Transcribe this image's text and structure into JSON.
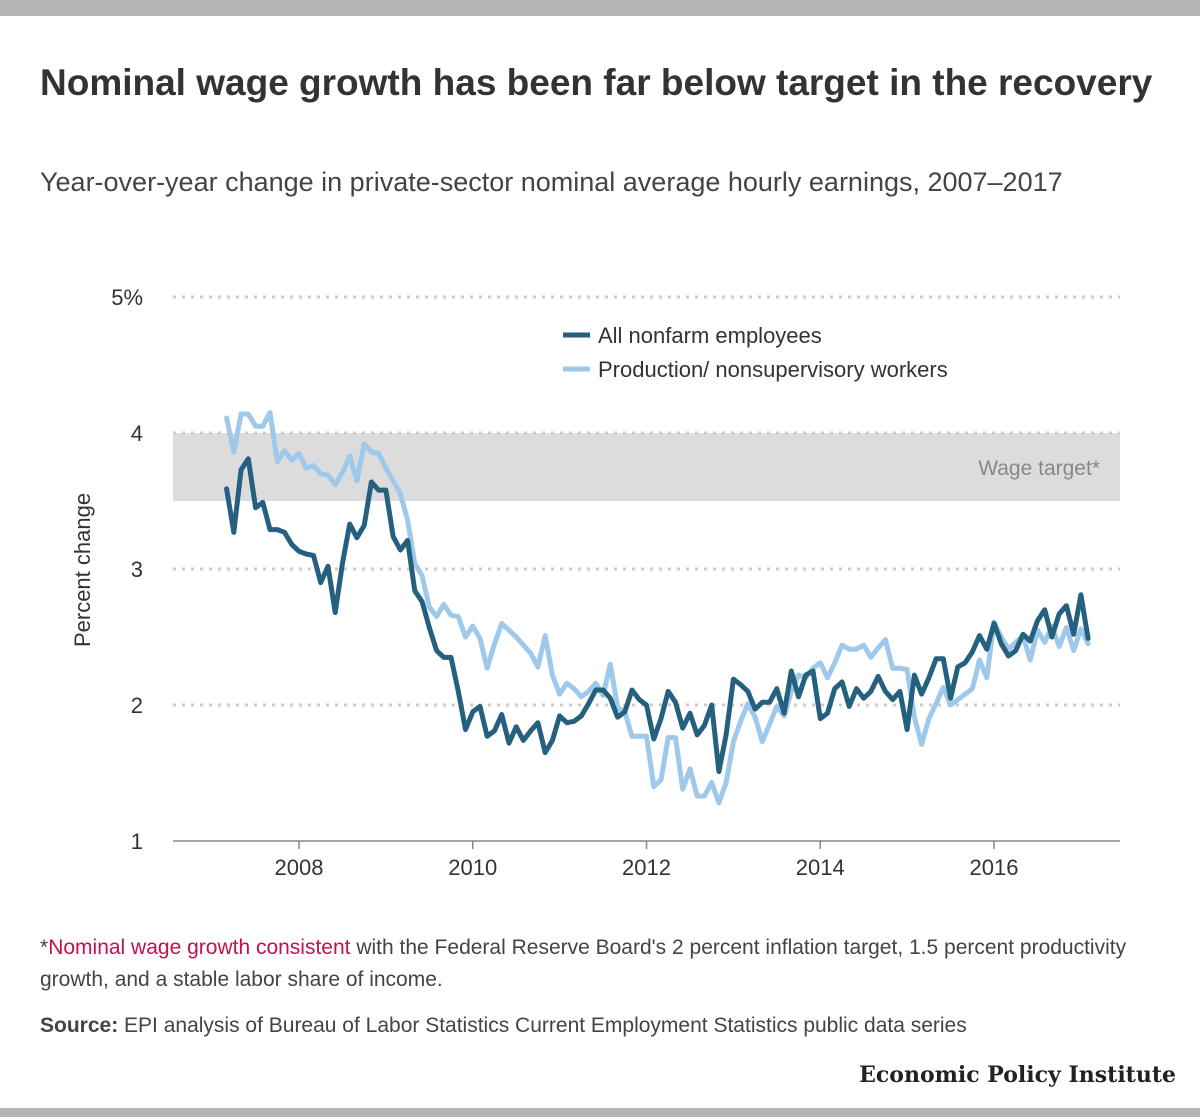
{
  "title": "Nominal wage growth has been far below target in the recovery",
  "subtitle": "Year-over-year change in private-sector nominal average hourly earnings, 2007–2017",
  "notes": {
    "asterisk": "*",
    "link_text": "Nominal wage growth consistent",
    "text": " with the Federal Reserve Board's 2 percent inflation target, 1.5 percent productivity growth, and a stable labor share of income."
  },
  "source": {
    "label": "Source:",
    "text": " EPI analysis of Bureau of Labor Statistics Current Employment Statistics public data series"
  },
  "logo": "Economic Policy Institute",
  "colors": {
    "all_nonfarm": "#25607f",
    "production": "#9ec9ea",
    "target_band": "#dcdcdc",
    "highlight": "#c5114b"
  },
  "chart_data": {
    "type": "line",
    "title": "Nominal wage growth has been far below target in the recovery",
    "xlabel": "",
    "ylabel": "Percent change",
    "xlim": [
      2006.55,
      2017.45
    ],
    "ylim": [
      1,
      5
    ],
    "yticks": [
      1,
      2,
      3,
      4,
      5
    ],
    "ytick_labels": [
      "1",
      "2",
      "3",
      "4",
      "5%"
    ],
    "xticks": [
      2008,
      2010,
      2012,
      2014,
      2016
    ],
    "xtick_labels": [
      "2008",
      "2010",
      "2012",
      "2014",
      "2016"
    ],
    "grid": true,
    "legend_position": "top-right",
    "target_band": {
      "label": "Wage target*",
      "from": 3.5,
      "to": 4.0
    },
    "x_start": 2007.167,
    "x_step": 0.08333,
    "series": [
      {
        "name": "All nonfarm employees",
        "color": "#25607f",
        "values": [
          3.59,
          3.27,
          3.73,
          3.81,
          3.45,
          3.49,
          3.29,
          3.29,
          3.27,
          3.18,
          3.13,
          3.11,
          3.1,
          2.9,
          3.02,
          2.68,
          3.04,
          3.33,
          3.23,
          3.32,
          3.64,
          3.58,
          3.58,
          3.24,
          3.14,
          3.21,
          2.84,
          2.76,
          2.57,
          2.4,
          2.35,
          2.35,
          2.1,
          1.82,
          1.95,
          1.99,
          1.77,
          1.81,
          1.93,
          1.72,
          1.84,
          1.74,
          1.81,
          1.87,
          1.65,
          1.74,
          1.92,
          1.87,
          1.88,
          1.92,
          2.01,
          2.11,
          2.11,
          2.05,
          1.91,
          1.95,
          2.11,
          2.04,
          2.0,
          1.75,
          1.9,
          2.1,
          2.02,
          1.83,
          1.94,
          1.78,
          1.85,
          2.0,
          1.51,
          1.78,
          2.19,
          2.15,
          2.1,
          1.97,
          2.02,
          2.02,
          2.12,
          1.94,
          2.25,
          2.06,
          2.22,
          2.25,
          1.9,
          1.94,
          2.12,
          2.17,
          1.99,
          2.12,
          2.05,
          2.1,
          2.21,
          2.1,
          2.04,
          2.1,
          1.82,
          2.22,
          2.08,
          2.2,
          2.34,
          2.34,
          2.05,
          2.28,
          2.31,
          2.39,
          2.51,
          2.41,
          2.6,
          2.45,
          2.36,
          2.4,
          2.52,
          2.47,
          2.62,
          2.7,
          2.5,
          2.67,
          2.73,
          2.52,
          2.81,
          2.49
        ]
      },
      {
        "name": "Production/ nonsupervisory workers",
        "color": "#9ec9ea",
        "values": [
          4.11,
          3.86,
          4.14,
          4.14,
          4.05,
          4.05,
          4.15,
          3.79,
          3.87,
          3.8,
          3.85,
          3.74,
          3.76,
          3.7,
          3.69,
          3.62,
          3.71,
          3.83,
          3.65,
          3.92,
          3.86,
          3.85,
          3.74,
          3.65,
          3.55,
          3.36,
          3.04,
          2.95,
          2.72,
          2.65,
          2.74,
          2.66,
          2.65,
          2.5,
          2.58,
          2.49,
          2.27,
          2.45,
          2.6,
          2.55,
          2.5,
          2.44,
          2.38,
          2.28,
          2.51,
          2.22,
          2.08,
          2.16,
          2.12,
          2.06,
          2.1,
          2.16,
          2.07,
          2.3,
          1.98,
          1.95,
          1.77,
          1.77,
          1.77,
          1.4,
          1.45,
          1.76,
          1.76,
          1.38,
          1.53,
          1.33,
          1.33,
          1.43,
          1.28,
          1.43,
          1.73,
          1.88,
          2.01,
          1.91,
          1.73,
          1.86,
          1.99,
          1.92,
          2.1,
          2.22,
          2.2,
          2.27,
          2.31,
          2.2,
          2.31,
          2.44,
          2.41,
          2.41,
          2.44,
          2.35,
          2.42,
          2.48,
          2.27,
          2.27,
          2.26,
          1.91,
          1.71,
          1.9,
          2.01,
          2.13,
          2.0,
          2.04,
          2.08,
          2.12,
          2.33,
          2.2,
          2.61,
          2.5,
          2.41,
          2.46,
          2.51,
          2.33,
          2.55,
          2.46,
          2.58,
          2.43,
          2.57,
          2.4,
          2.56,
          2.45
        ]
      }
    ]
  }
}
